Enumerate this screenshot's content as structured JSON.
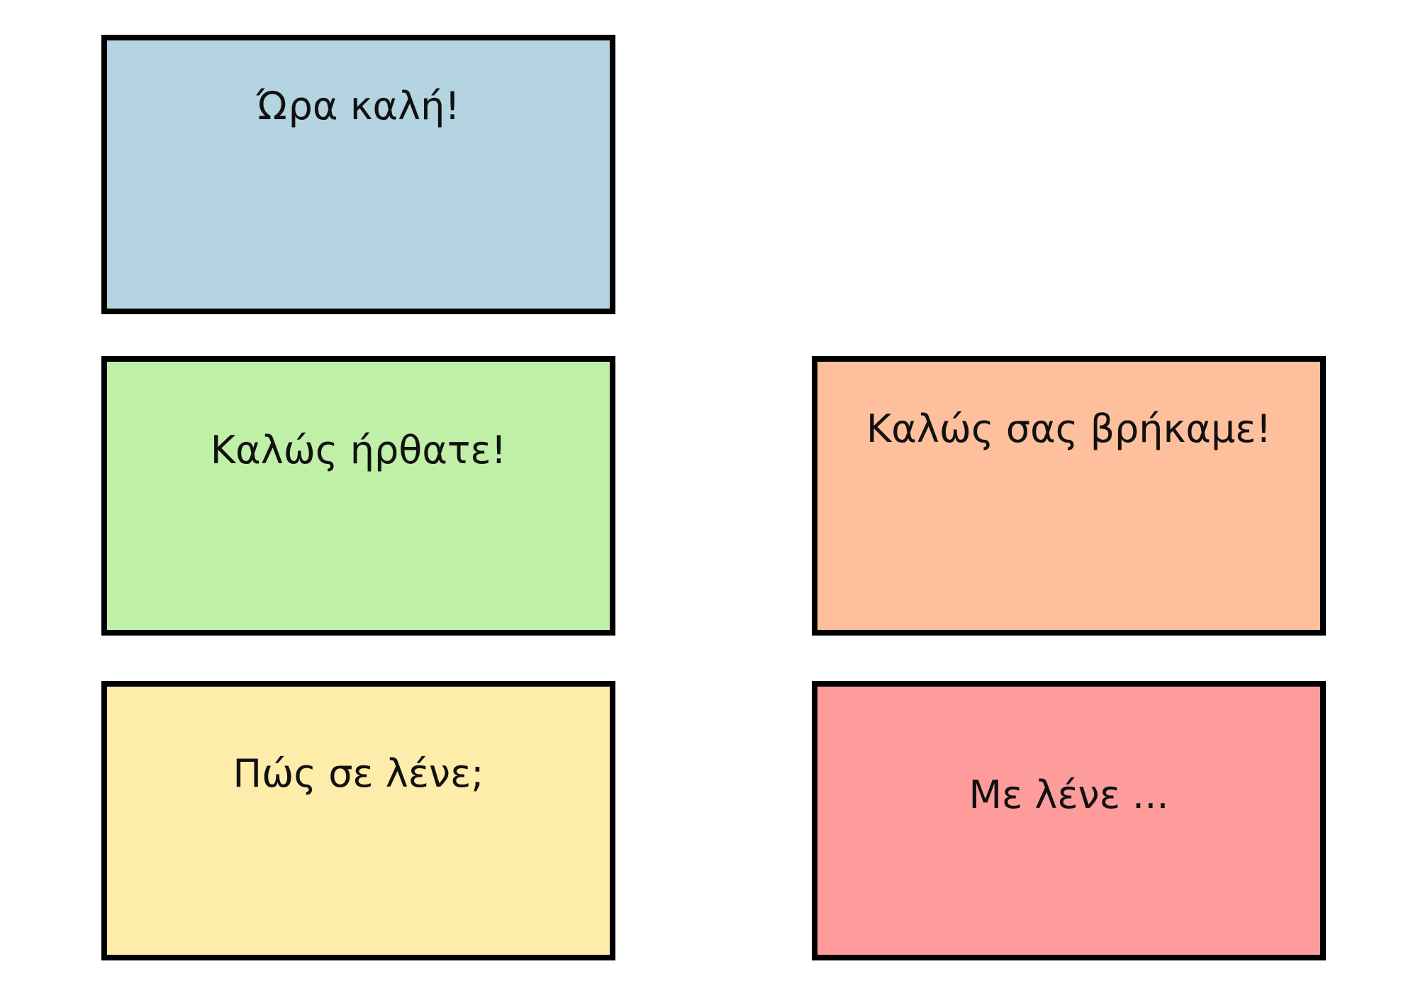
{
  "cards": [
    {
      "label": "Ώρα καλή!",
      "color": "#b3d4e0"
    },
    {
      "label": "Καλώς ήρθατε!",
      "color": "#c0f0a8"
    },
    {
      "label": "Καλώς σας βρήκαμε!",
      "color": "#fec09c"
    },
    {
      "label": "Πώς σε λένε;",
      "color": "#feecaa"
    },
    {
      "label": "Με λένε ...",
      "color": "#fe9c9c"
    }
  ]
}
